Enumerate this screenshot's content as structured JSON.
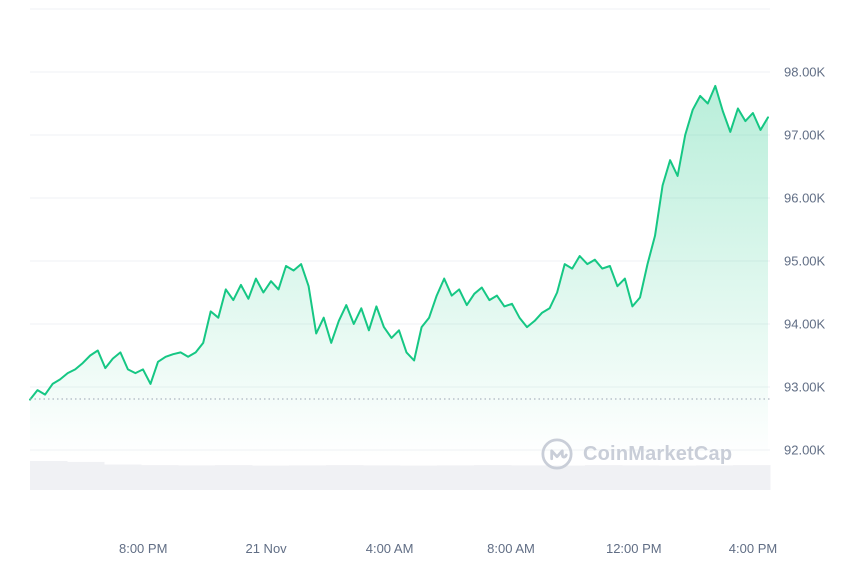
{
  "watermark": {
    "label": "CoinMarketCap"
  },
  "colors": {
    "line": "#16c784",
    "area_top": "rgba(22,199,132,0.30)",
    "area_bottom": "rgba(22,199,132,0)",
    "grid": "#eff2f5",
    "axis_text": "#616e85",
    "baseline_dotted": "#9aa4b2",
    "volume": "#f0f1f4",
    "watermark": "#c9ced8"
  },
  "chart_data": {
    "type": "area",
    "title": "",
    "xlabel": "",
    "ylabel": "",
    "ylim": [
      92,
      99
    ],
    "grid": true,
    "legend": "none",
    "y_axis_side": "right",
    "y_ticks": [
      {
        "value": 99,
        "label": ""
      },
      {
        "value": 98,
        "label": "98.00K"
      },
      {
        "value": 97,
        "label": "97.00K"
      },
      {
        "value": 96,
        "label": "96.00K"
      },
      {
        "value": 95,
        "label": "95.00K"
      },
      {
        "value": 94,
        "label": "94.00K"
      },
      {
        "value": 93,
        "label": "93.00K"
      },
      {
        "value": 92,
        "label": "92.00K"
      }
    ],
    "x_ticks": [
      {
        "label": "8:00 PM",
        "pos": 0.153
      },
      {
        "label": "21 Nov",
        "pos": 0.319
      },
      {
        "label": "4:00 AM",
        "pos": 0.486
      },
      {
        "label": "8:00 AM",
        "pos": 0.65
      },
      {
        "label": "12:00 PM",
        "pos": 0.816
      },
      {
        "label": "4:00 PM",
        "pos": 0.977
      }
    ],
    "open_price_line": 92.81,
    "prices": [
      92.8,
      92.95,
      92.88,
      93.05,
      93.12,
      93.22,
      93.28,
      93.38,
      93.5,
      93.58,
      93.3,
      93.45,
      93.55,
      93.28,
      93.22,
      93.28,
      93.05,
      93.4,
      93.48,
      93.52,
      93.55,
      93.48,
      93.55,
      93.7,
      94.2,
      94.1,
      94.55,
      94.38,
      94.62,
      94.4,
      94.72,
      94.5,
      94.68,
      94.55,
      94.92,
      94.85,
      94.95,
      94.6,
      93.85,
      94.1,
      93.7,
      94.05,
      94.3,
      94.0,
      94.25,
      93.9,
      94.28,
      93.95,
      93.78,
      93.9,
      93.55,
      93.42,
      93.95,
      94.1,
      94.45,
      94.72,
      94.45,
      94.55,
      94.3,
      94.48,
      94.58,
      94.38,
      94.45,
      94.28,
      94.32,
      94.1,
      93.95,
      94.05,
      94.18,
      94.25,
      94.5,
      94.95,
      94.88,
      95.08,
      94.95,
      95.02,
      94.88,
      94.92,
      94.6,
      94.72,
      94.28,
      94.42,
      94.95,
      95.4,
      96.2,
      96.6,
      96.35,
      97.0,
      97.4,
      97.62,
      97.5,
      97.78,
      97.38,
      97.05,
      97.42,
      97.22,
      97.35,
      97.08,
      97.28
    ],
    "volume_relative": [
      1.0,
      0.97,
      0.88,
      0.86,
      0.85,
      0.86,
      0.84,
      0.85,
      0.86,
      0.85,
      0.84,
      0.85,
      0.86,
      0.85,
      0.84,
      0.86,
      0.85,
      0.84,
      0.85,
      0.86
    ]
  }
}
